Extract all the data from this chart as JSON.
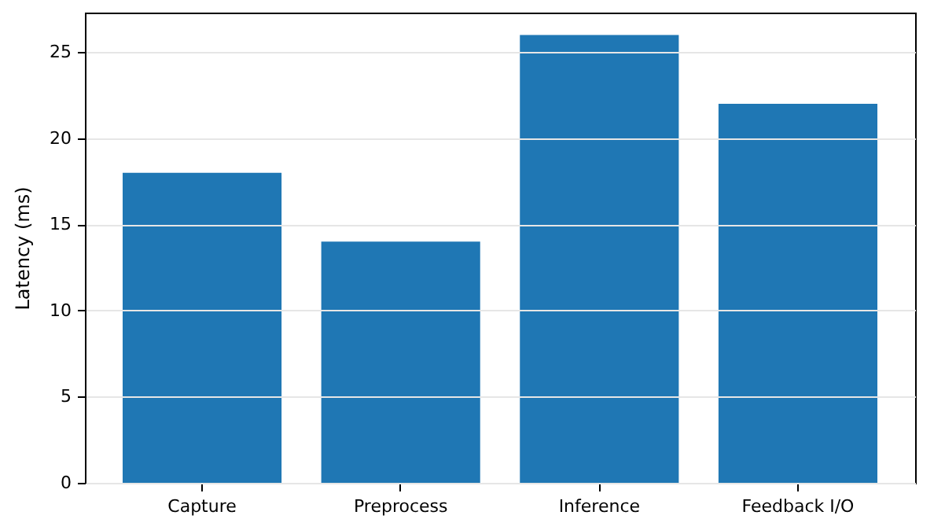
{
  "chart_data": {
    "type": "bar",
    "ylabel": "Latency (ms)",
    "categories": [
      "Capture",
      "Preprocess",
      "Inference",
      "Feedback I/O"
    ],
    "values": [
      18,
      14,
      26,
      22
    ],
    "color": "#1f77b4",
    "ylim": [
      0,
      27.3
    ],
    "yticks": [
      0,
      5,
      10,
      15,
      20,
      25
    ],
    "grid": "y"
  }
}
